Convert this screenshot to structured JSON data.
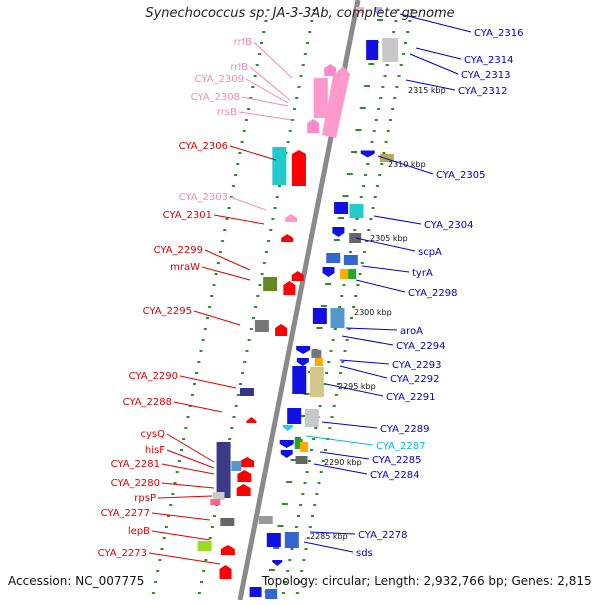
{
  "title": "Synechococcus sp. JA-3-3Ab, complete genome",
  "accession": "Accession: NC_007775",
  "topology": "Topology: circular; Length: 2,932,766 bp; Genes: 2,815",
  "colors": {
    "backbone": "#8a8a8a",
    "tick": "#2e8b2e",
    "label_left": "#e00000",
    "label_left_rna": "#f08cb4",
    "label_right": "#0000cc",
    "label_right_alt": "#00bcdc"
  },
  "scale_labels": [
    "2315 kbp",
    "2310 kbp",
    "2305 kbp",
    "2300 kbp",
    "2295 kbp",
    "2290 kbp",
    "2285 kbp"
  ],
  "left_labels": [
    {
      "text": "rrfB",
      "kind": "rna"
    },
    {
      "text": "rrlB",
      "kind": "rna"
    },
    {
      "text": "CYA_2309",
      "kind": "rna"
    },
    {
      "text": "CYA_2308",
      "kind": "rna"
    },
    {
      "text": "rrsB",
      "kind": "rna"
    },
    {
      "text": "CYA_2306",
      "kind": "cds"
    },
    {
      "text": "CYA_2303",
      "kind": "rna"
    },
    {
      "text": "CYA_2301",
      "kind": "cds"
    },
    {
      "text": "CYA_2299",
      "kind": "cds"
    },
    {
      "text": "mraW",
      "kind": "cds"
    },
    {
      "text": "CYA_2295",
      "kind": "cds"
    },
    {
      "text": "CYA_2290",
      "kind": "cds"
    },
    {
      "text": "CYA_2288",
      "kind": "cds"
    },
    {
      "text": "cysQ",
      "kind": "cds"
    },
    {
      "text": "hisF",
      "kind": "cds"
    },
    {
      "text": "CYA_2281",
      "kind": "cds"
    },
    {
      "text": "CYA_2280",
      "kind": "cds"
    },
    {
      "text": "rpsP",
      "kind": "cds"
    },
    {
      "text": "CYA_2277",
      "kind": "cds"
    },
    {
      "text": "lepB",
      "kind": "cds"
    },
    {
      "text": "CYA_2273",
      "kind": "cds"
    }
  ],
  "right_labels": [
    {
      "text": "CYA_2316",
      "kind": "cds"
    },
    {
      "text": "CYA_2314",
      "kind": "cds"
    },
    {
      "text": "CYA_2313",
      "kind": "cds"
    },
    {
      "text": "CYA_2312",
      "kind": "cds"
    },
    {
      "text": "CYA_2305",
      "kind": "cds"
    },
    {
      "text": "CYA_2304",
      "kind": "cds"
    },
    {
      "text": "scpA",
      "kind": "cds"
    },
    {
      "text": "tyrA",
      "kind": "cds"
    },
    {
      "text": "CYA_2298",
      "kind": "cds"
    },
    {
      "text": "aroA",
      "kind": "cds"
    },
    {
      "text": "CYA_2294",
      "kind": "cds"
    },
    {
      "text": "CYA_2293",
      "kind": "cds"
    },
    {
      "text": "CYA_2292",
      "kind": "cds"
    },
    {
      "text": "CYA_2291",
      "kind": "cds"
    },
    {
      "text": "CYA_2289",
      "kind": "cds"
    },
    {
      "text": "CYA_2287",
      "kind": "alt"
    },
    {
      "text": "CYA_2285",
      "kind": "cds"
    },
    {
      "text": "CYA_2284",
      "kind": "cds"
    },
    {
      "text": "CYA_2278",
      "kind": "cds"
    },
    {
      "text": "sds",
      "kind": "cds"
    }
  ]
}
